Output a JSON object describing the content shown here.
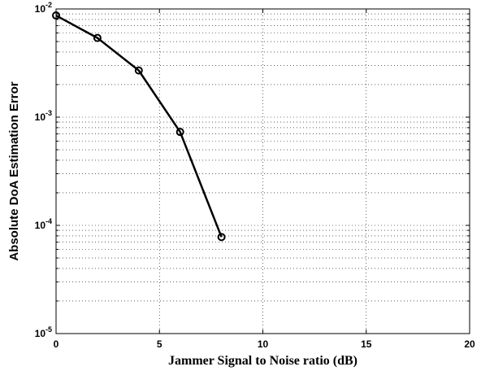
{
  "chart_data": {
    "type": "line",
    "xlabel": "Jammer Signal to Noise ratio (dB)",
    "ylabel": "Absolute DoA Estimation Error",
    "x_scale": "linear",
    "y_scale": "log",
    "xlim": [
      0,
      20
    ],
    "ylim": [
      1e-05,
      0.01
    ],
    "grid": true,
    "x_ticks": [
      {
        "value": 0,
        "label": "0"
      },
      {
        "value": 5,
        "label": "5"
      },
      {
        "value": 10,
        "label": "10"
      },
      {
        "value": 15,
        "label": "15"
      },
      {
        "value": 20,
        "label": "20"
      }
    ],
    "y_ticks": [
      {
        "value": 1e-05,
        "base": "10",
        "exp": "-5"
      },
      {
        "value": 0.0001,
        "base": "10",
        "exp": "-4"
      },
      {
        "value": 0.001,
        "base": "10",
        "exp": "-3"
      },
      {
        "value": 0.01,
        "base": "10",
        "exp": "-2"
      }
    ],
    "series": [
      {
        "color": "#000000",
        "marker": "circle",
        "x": [
          0,
          2,
          4,
          6,
          8
        ],
        "y": [
          0.0087,
          0.0054,
          0.0027,
          0.00073,
          7.8e-05
        ]
      }
    ]
  }
}
